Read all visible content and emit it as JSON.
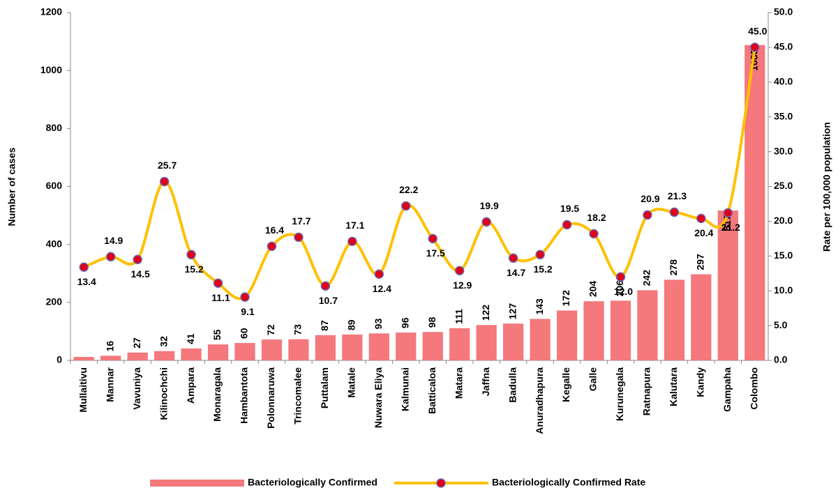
{
  "chart_data": {
    "type": "bar-line",
    "categories": [
      "Mullaitivu",
      "Mannar",
      "Vavuniya",
      "Kilinochchi",
      "Ampara",
      "Monaragala",
      "Hambantota",
      "Polonnaruwa",
      "Trincomalee",
      "Puttalam",
      "Matale",
      "Nuwara Eliya",
      "Kalmunai",
      "Batticaloa",
      "Matara",
      "Jaffna",
      "Badulla",
      "Anuradhapura",
      "Kegalle",
      "Galle",
      "Kurunegala",
      "Ratnapura",
      "Kalutara",
      "Kandy",
      "Gampaha",
      "Colombo"
    ],
    "series": [
      {
        "name": "Bacteriologically Confirmed",
        "type": "bar",
        "color": "#f4787c",
        "values": [
          12,
          16,
          27,
          32,
          41,
          55,
          60,
          72,
          73,
          87,
          89,
          93,
          96,
          98,
          111,
          122,
          127,
          143,
          172,
          204,
          206,
          242,
          278,
          297,
          517,
          1088
        ],
        "value_labels": [
          null,
          "16",
          "27",
          "32",
          "41",
          "55",
          "60",
          "72",
          "73",
          "87",
          "89",
          "93",
          "96",
          "98",
          "111",
          "122",
          "127",
          "143",
          "172",
          "204",
          "206",
          "242",
          "278",
          "297",
          "517",
          "1088"
        ]
      },
      {
        "name": "Bacteriologically Confirmed Rate",
        "type": "line",
        "axis": "y2",
        "color": "#ffc000",
        "marker_color": "#e0001b",
        "values": [
          13.4,
          14.9,
          14.5,
          25.7,
          15.2,
          11.1,
          9.1,
          16.4,
          17.7,
          10.7,
          17.1,
          12.4,
          22.2,
          17.5,
          12.9,
          19.9,
          14.7,
          15.2,
          19.5,
          18.2,
          12.0,
          20.9,
          21.3,
          20.4,
          21.2,
          45.0
        ],
        "value_labels": [
          "13.4",
          "14.9",
          "14.5",
          "25.7",
          "15.2",
          "11.1",
          "9.1",
          "16.4",
          "17.7",
          "10.7",
          "17.1",
          "12.4",
          "22.2",
          "17.5",
          "12.9",
          "19.9",
          "14.7",
          "15.2",
          "19.5",
          "18.2",
          "12.0",
          "20.9",
          "21.3",
          "20.4",
          "21.2",
          "45.0"
        ]
      }
    ],
    "ylabel": "Number of cases",
    "y2label": "Rate per 100,000 population",
    "ylim": [
      0,
      1200
    ],
    "yticks": [
      0,
      200,
      400,
      600,
      800,
      1000,
      1200
    ],
    "y2lim": [
      0,
      50
    ],
    "y2ticks": [
      {
        "value": 0,
        "label": "0.0"
      },
      {
        "value": 5,
        "label": "5.0"
      },
      {
        "value": 10,
        "label": "10.0"
      },
      {
        "value": 15,
        "label": "15.0"
      },
      {
        "value": 20,
        "label": "20.0"
      },
      {
        "value": 25,
        "label": "25.0"
      },
      {
        "value": 30,
        "label": "30.0"
      },
      {
        "value": 35,
        "label": "35.0"
      },
      {
        "value": 40,
        "label": "40.0"
      },
      {
        "value": 45,
        "label": "45.0"
      },
      {
        "value": 50,
        "label": "50.0"
      }
    ],
    "legend": "bottom"
  }
}
